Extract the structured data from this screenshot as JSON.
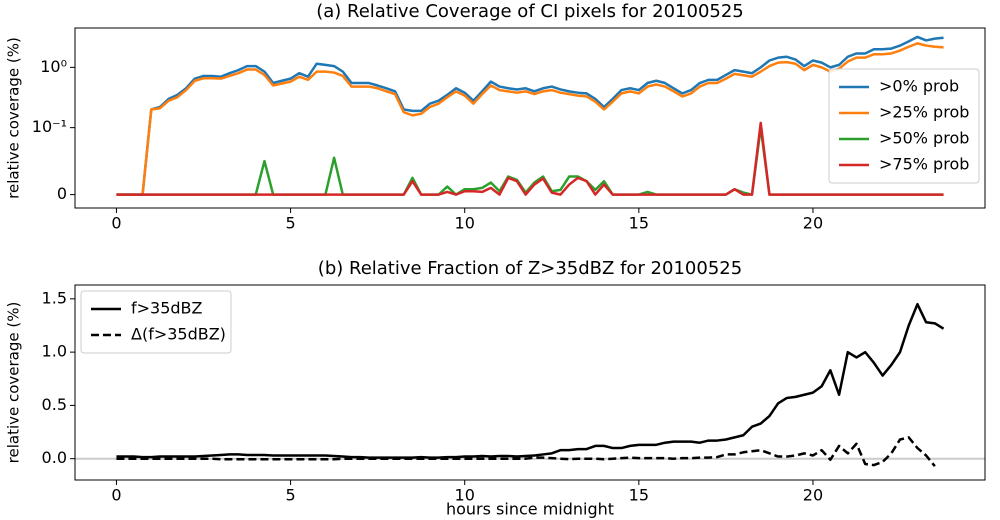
{
  "chart_data": [
    {
      "type": "line",
      "title": "(a) Relative Coverage of CI pixels for 20100525",
      "y_label": "relative coverage (%)",
      "yscale": "symlog",
      "linthresh": 0.1,
      "xlim": [
        -1.19,
        24.94
      ],
      "xticks": [
        0,
        5,
        10,
        15,
        20
      ],
      "ylim": [
        -0.02,
        4.5
      ],
      "yticks": [
        0,
        {
          "value": 0.1,
          "label": "10⁻¹"
        },
        {
          "value": 1,
          "label": "10⁰"
        }
      ],
      "legend": "center right",
      "x": [
        0,
        0.25,
        0.5,
        0.75,
        1,
        1.25,
        1.5,
        1.75,
        2,
        2.25,
        2.5,
        2.75,
        3,
        3.25,
        3.5,
        3.75,
        4,
        4.25,
        4.5,
        4.75,
        5,
        5.25,
        5.5,
        5.75,
        6,
        6.25,
        6.5,
        6.75,
        7,
        7.25,
        7.5,
        7.75,
        8,
        8.25,
        8.5,
        8.75,
        9,
        9.25,
        9.5,
        9.75,
        10,
        10.25,
        10.5,
        10.75,
        11,
        11.25,
        11.5,
        11.75,
        12,
        12.25,
        12.5,
        12.75,
        13,
        13.25,
        13.5,
        13.75,
        14,
        14.25,
        14.5,
        14.75,
        15,
        15.25,
        15.5,
        15.75,
        16,
        16.25,
        16.5,
        16.75,
        17,
        17.25,
        17.5,
        17.75,
        18,
        18.25,
        18.5,
        18.75,
        19,
        19.25,
        19.5,
        19.75,
        20,
        20.25,
        20.5,
        20.75,
        21,
        21.25,
        21.5,
        21.75,
        22,
        22.25,
        22.5,
        22.75,
        23,
        23.25,
        23.5,
        23.75
      ],
      "series": [
        {
          "name": ">0% prob",
          "color": "#1f77b4",
          "values": [
            0,
            0,
            0,
            0,
            0.2,
            0.22,
            0.3,
            0.35,
            0.45,
            0.65,
            0.72,
            0.72,
            0.7,
            0.8,
            0.9,
            1.05,
            1.05,
            0.85,
            0.55,
            0.6,
            0.65,
            0.8,
            0.7,
            1.15,
            1.1,
            1.05,
            0.85,
            0.55,
            0.55,
            0.55,
            0.5,
            0.45,
            0.4,
            0.2,
            0.19,
            0.19,
            0.25,
            0.28,
            0.35,
            0.45,
            0.38,
            0.28,
            0.4,
            0.58,
            0.48,
            0.45,
            0.43,
            0.45,
            0.4,
            0.45,
            0.48,
            0.43,
            0.4,
            0.38,
            0.37,
            0.3,
            0.22,
            0.3,
            0.42,
            0.45,
            0.42,
            0.55,
            0.6,
            0.55,
            0.45,
            0.37,
            0.42,
            0.55,
            0.62,
            0.62,
            0.75,
            0.9,
            0.85,
            0.8,
            1.0,
            1.3,
            1.45,
            1.5,
            1.35,
            1.05,
            1.3,
            1.2,
            1.0,
            1.1,
            1.5,
            1.7,
            1.7,
            2.0,
            2.0,
            2.05,
            2.3,
            2.7,
            3.2,
            2.8,
            3.0,
            3.1
          ]
        },
        {
          "name": ">25% prob",
          "color": "#ff7f0e",
          "values": [
            0,
            0,
            0,
            0,
            0.2,
            0.21,
            0.28,
            0.32,
            0.42,
            0.6,
            0.66,
            0.66,
            0.65,
            0.72,
            0.8,
            0.92,
            0.92,
            0.75,
            0.5,
            0.54,
            0.58,
            0.7,
            0.62,
            0.85,
            0.85,
            0.82,
            0.72,
            0.48,
            0.48,
            0.48,
            0.45,
            0.4,
            0.36,
            0.18,
            0.16,
            0.17,
            0.22,
            0.25,
            0.32,
            0.4,
            0.34,
            0.25,
            0.36,
            0.5,
            0.42,
            0.4,
            0.38,
            0.4,
            0.36,
            0.4,
            0.42,
            0.38,
            0.36,
            0.34,
            0.33,
            0.27,
            0.2,
            0.27,
            0.37,
            0.4,
            0.37,
            0.48,
            0.52,
            0.48,
            0.4,
            0.33,
            0.37,
            0.48,
            0.55,
            0.55,
            0.65,
            0.78,
            0.74,
            0.7,
            0.85,
            1.05,
            1.2,
            1.22,
            1.15,
            0.9,
            1.1,
            1.0,
            0.85,
            0.95,
            1.25,
            1.45,
            1.45,
            1.65,
            1.65,
            1.7,
            1.9,
            2.2,
            2.5,
            2.3,
            2.2,
            2.15
          ]
        },
        {
          "name": ">50% prob",
          "color": "#2ca02c",
          "values": [
            0,
            0,
            0,
            0,
            0,
            0,
            0,
            0,
            0,
            0,
            0,
            0,
            0,
            0,
            0,
            0,
            0,
            0.05,
            0,
            0,
            0,
            0,
            0,
            0,
            0,
            0.055,
            0,
            0,
            0,
            0,
            0,
            0,
            0,
            0,
            0.025,
            0,
            0,
            0,
            0.012,
            0,
            0.008,
            0.008,
            0.01,
            0.018,
            0.005,
            0.027,
            0.022,
            0.003,
            0.018,
            0.027,
            0.005,
            0.007,
            0.027,
            0.027,
            0.02,
            0.007,
            0.02,
            0,
            0,
            0,
            0,
            0.004,
            0,
            0,
            0,
            0,
            0,
            0,
            0,
            0,
            0,
            0.008,
            0.003,
            0,
            0.1,
            0,
            0,
            0,
            0,
            0,
            0,
            0,
            0,
            0,
            0,
            0,
            0,
            0,
            0,
            0,
            0,
            0,
            0,
            0,
            0,
            0
          ]
        },
        {
          "name": ">75% prob",
          "color": "#d62728",
          "values": [
            0,
            0,
            0,
            0,
            0,
            0,
            0,
            0,
            0,
            0,
            0,
            0,
            0,
            0,
            0,
            0,
            0,
            0,
            0,
            0,
            0,
            0,
            0,
            0,
            0,
            0,
            0,
            0,
            0,
            0,
            0,
            0,
            0,
            0,
            0.02,
            0,
            0,
            0,
            0.004,
            0,
            0.005,
            0.005,
            0.004,
            0.01,
            0,
            0.025,
            0.02,
            0,
            0.015,
            0.024,
            0.003,
            0,
            0.015,
            0.025,
            0.02,
            0,
            0.015,
            0,
            0,
            0,
            0,
            0,
            0,
            0,
            0,
            0,
            0,
            0,
            0,
            0,
            0,
            0.008,
            0,
            0,
            0.12,
            0,
            0,
            0,
            0,
            0,
            0,
            0,
            0,
            0,
            0,
            0,
            0,
            0,
            0,
            0,
            0,
            0,
            0,
            0,
            0,
            0
          ]
        }
      ]
    },
    {
      "type": "line",
      "title": "(b) Relative Fraction of Z>35dBZ for 20100525",
      "y_label": "relative coverage (%)",
      "x_label": "hours since midnight",
      "xlim": [
        -1.19,
        24.94
      ],
      "xticks": [
        0,
        5,
        10,
        15,
        20
      ],
      "ylim": [
        -0.2,
        1.63
      ],
      "yticks": [
        {
          "value": 0,
          "label": "0.0"
        },
        {
          "value": 0.5,
          "label": "0.5"
        },
        {
          "value": 1,
          "label": "1.0"
        },
        1.5
      ],
      "hline": 0,
      "hline_color": "#cccccc",
      "legend": "upper left",
      "x": [
        0,
        0.25,
        0.5,
        0.75,
        1,
        1.25,
        1.5,
        1.75,
        2,
        2.25,
        2.5,
        2.75,
        3,
        3.25,
        3.5,
        3.75,
        4,
        4.25,
        4.5,
        4.75,
        5,
        5.25,
        5.5,
        5.75,
        6,
        6.25,
        6.5,
        6.75,
        7,
        7.25,
        7.5,
        7.75,
        8,
        8.25,
        8.5,
        8.75,
        9,
        9.25,
        9.5,
        9.75,
        10,
        10.25,
        10.5,
        10.75,
        11,
        11.25,
        11.5,
        11.75,
        12,
        12.25,
        12.5,
        12.75,
        13,
        13.25,
        13.5,
        13.75,
        14,
        14.25,
        14.5,
        14.75,
        15,
        15.25,
        15.5,
        15.75,
        16,
        16.25,
        16.5,
        16.75,
        17,
        17.25,
        17.5,
        17.75,
        18,
        18.25,
        18.5,
        18.75,
        19,
        19.25,
        19.5,
        19.75,
        20,
        20.25,
        20.5,
        20.75,
        21,
        21.25,
        21.5,
        21.75,
        22,
        22.25,
        22.5,
        22.75,
        23,
        23.25,
        23.5,
        23.75
      ],
      "series": [
        {
          "name": "f>35dBZ",
          "color": "#000000",
          "dash": false,
          "values": [
            0.02,
            0.02,
            0.02,
            0.015,
            0.015,
            0.02,
            0.02,
            0.02,
            0.02,
            0.02,
            0.025,
            0.03,
            0.035,
            0.04,
            0.04,
            0.035,
            0.035,
            0.035,
            0.03,
            0.03,
            0.03,
            0.03,
            0.03,
            0.03,
            0.03,
            0.025,
            0.02,
            0.015,
            0.015,
            0.01,
            0.01,
            0.01,
            0.01,
            0.01,
            0.01,
            0.015,
            0.01,
            0.01,
            0.015,
            0.015,
            0.02,
            0.02,
            0.025,
            0.02,
            0.025,
            0.025,
            0.02,
            0.025,
            0.03,
            0.04,
            0.05,
            0.08,
            0.08,
            0.09,
            0.09,
            0.12,
            0.12,
            0.1,
            0.1,
            0.12,
            0.13,
            0.13,
            0.13,
            0.15,
            0.16,
            0.16,
            0.16,
            0.15,
            0.17,
            0.17,
            0.18,
            0.2,
            0.22,
            0.3,
            0.33,
            0.4,
            0.52,
            0.57,
            0.58,
            0.6,
            0.62,
            0.68,
            0.83,
            0.6,
            1.0,
            0.95,
            1.0,
            0.9,
            0.78,
            0.88,
            1.0,
            1.25,
            1.45,
            1.28,
            1.27,
            1.22
          ]
        },
        {
          "name": "Δ(f>35dBZ)",
          "color": "#000000",
          "dash": true,
          "values": [
            0,
            0,
            0,
            0,
            0,
            0,
            0,
            0,
            0,
            0,
            0,
            0,
            -0.005,
            -0.005,
            -0.005,
            -0.005,
            -0.005,
            -0.005,
            -0.005,
            -0.005,
            -0.005,
            -0.005,
            -0.005,
            -0.005,
            -0.005,
            -0.005,
            0,
            0,
            0,
            0,
            0,
            0,
            0,
            0,
            0,
            0,
            0,
            0,
            0,
            0,
            0,
            0,
            0,
            0,
            0,
            0,
            0,
            0,
            0.01,
            0.01,
            0.005,
            0,
            -0.005,
            0,
            0,
            0,
            -0.005,
            0,
            0.005,
            0.01,
            0.005,
            0.005,
            0.005,
            0.005,
            0,
            0.005,
            0.005,
            0.01,
            0.01,
            0.015,
            0.04,
            0.04,
            0.06,
            0.07,
            0.08,
            0.05,
            0.02,
            0.02,
            0.03,
            0.05,
            0.03,
            0.08,
            -0.01,
            0.12,
            0.05,
            0.14,
            -0.05,
            -0.06,
            -0.03,
            0.05,
            0.18,
            0.2,
            0.1,
            0.03,
            -0.07,
            null
          ]
        }
      ]
    }
  ]
}
